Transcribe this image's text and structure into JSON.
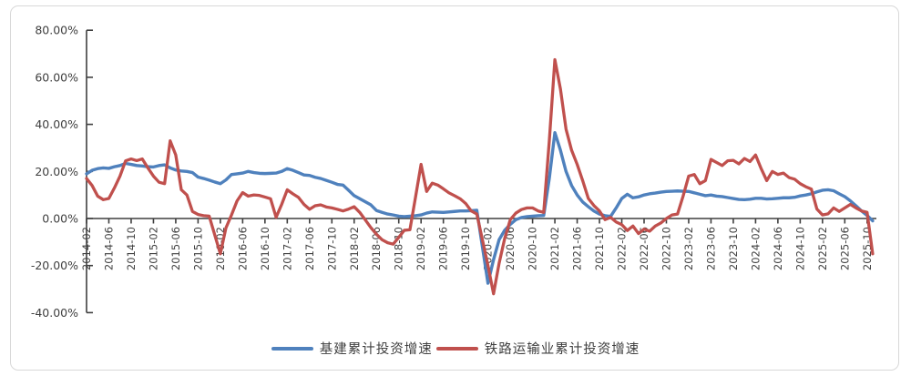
{
  "chart_data": {
    "type": "line",
    "title": "",
    "xlabel": "",
    "ylabel": "",
    "ylim": [
      -40,
      80
    ],
    "grid": false,
    "legend_position": "bottom-center",
    "axis_color": "#3f3f3f",
    "y_ticks": [
      {
        "label": "80.00%",
        "value": 80
      },
      {
        "label": "60.00%",
        "value": 60
      },
      {
        "label": "40.00%",
        "value": 40
      },
      {
        "label": "20.00%",
        "value": 20
      },
      {
        "label": "0.00%",
        "value": 0
      },
      {
        "label": "-20.00%",
        "value": -20
      },
      {
        "label": "-40.00%",
        "value": -40
      }
    ],
    "x_tick_every": 4,
    "x": [
      "2014-02",
      "2014-03",
      "2014-04",
      "2014-05",
      "2014-06",
      "2014-07",
      "2014-08",
      "2014-09",
      "2014-10",
      "2014-11",
      "2014-12",
      "2015-01",
      "2015-02",
      "2015-03",
      "2015-04",
      "2015-05",
      "2015-06",
      "2015-07",
      "2015-08",
      "2015-09",
      "2015-10",
      "2015-11",
      "2015-12",
      "2016-01",
      "2016-02",
      "2016-03",
      "2016-04",
      "2016-05",
      "2016-06",
      "2016-07",
      "2016-08",
      "2016-09",
      "2016-10",
      "2016-11",
      "2016-12",
      "2017-01",
      "2017-02",
      "2017-03",
      "2017-04",
      "2017-05",
      "2017-06",
      "2017-07",
      "2017-08",
      "2017-09",
      "2017-10",
      "2017-11",
      "2017-12",
      "2018-01",
      "2018-02",
      "2018-03",
      "2018-04",
      "2018-05",
      "2018-06",
      "2018-07",
      "2018-08",
      "2018-09",
      "2018-10",
      "2018-11",
      "2018-12",
      "2019-01",
      "2019-02",
      "2019-03",
      "2019-04",
      "2019-05",
      "2019-06",
      "2019-07",
      "2019-08",
      "2019-09",
      "2019-10",
      "2019-11",
      "2019-12",
      "2020-01",
      "2020-02",
      "2020-03",
      "2020-04",
      "2020-05",
      "2020-06",
      "2020-07",
      "2020-08",
      "2020-09",
      "2020-10",
      "2020-11",
      "2020-12",
      "2021-01",
      "2021-02",
      "2021-03",
      "2021-04",
      "2021-05",
      "2021-06",
      "2021-07",
      "2021-08",
      "2021-09",
      "2021-10",
      "2021-11",
      "2021-12",
      "2022-01",
      "2022-02",
      "2022-03",
      "2022-04",
      "2022-05",
      "2022-06",
      "2022-07",
      "2022-08",
      "2022-09",
      "2022-10",
      "2022-11",
      "2022-12",
      "2023-01",
      "2023-02",
      "2023-03",
      "2023-04",
      "2023-05",
      "2023-06",
      "2023-07",
      "2023-08",
      "2023-09",
      "2023-10",
      "2023-11",
      "2023-12",
      "2024-01",
      "2024-02",
      "2024-03",
      "2024-04",
      "2024-05",
      "2024-06",
      "2024-07",
      "2024-08",
      "2024-09",
      "2024-10",
      "2024-11",
      "2024-12",
      "2025-01",
      "2025-02",
      "2025-03",
      "2025-04",
      "2025-05",
      "2025-06",
      "2025-07",
      "2025-08",
      "2025-09",
      "2025-10",
      "2025-11"
    ],
    "series": [
      {
        "name": "基建累计投资增速",
        "color": "#4F81BD",
        "width": 3.4,
        "values": [
          19.0,
          20.5,
          21.2,
          21.5,
          21.3,
          22.0,
          22.5,
          23.4,
          23.0,
          22.5,
          22.3,
          22.0,
          21.9,
          22.5,
          22.8,
          21.5,
          20.6,
          20.2,
          20.0,
          19.5,
          17.6,
          17.0,
          16.3,
          15.5,
          14.8,
          16.4,
          18.7,
          19.0,
          19.3,
          20.0,
          19.5,
          19.2,
          19.1,
          19.2,
          19.3,
          20.0,
          21.2,
          20.5,
          19.5,
          18.5,
          18.3,
          17.5,
          17.0,
          16.2,
          15.4,
          14.5,
          14.2,
          12.0,
          9.7,
          8.4,
          7.1,
          5.8,
          3.4,
          2.6,
          1.9,
          1.5,
          1.0,
          0.8,
          1.0,
          1.2,
          1.5,
          2.3,
          2.8,
          2.7,
          2.6,
          2.8,
          3.0,
          3.2,
          3.2,
          3.3,
          3.5,
          -12.0,
          -27.5,
          -17.5,
          -9.0,
          -5.0,
          -2.5,
          -0.5,
          0.4,
          0.8,
          1.0,
          1.2,
          1.3,
          17.0,
          36.5,
          29.0,
          20.0,
          14.0,
          10.0,
          7.0,
          5.0,
          3.2,
          1.9,
          1.2,
          0.9,
          4.5,
          8.5,
          10.3,
          8.8,
          9.2,
          10.0,
          10.5,
          10.8,
          11.2,
          11.5,
          11.6,
          11.7,
          11.6,
          11.5,
          10.9,
          10.3,
          9.7,
          10.0,
          9.5,
          9.3,
          8.9,
          8.5,
          8.1,
          8.0,
          8.2,
          8.6,
          8.6,
          8.3,
          8.4,
          8.6,
          8.8,
          8.8,
          9.0,
          9.6,
          10.0,
          10.5,
          11.3,
          12.0,
          12.2,
          11.8,
          10.5,
          9.3,
          7.5,
          5.4,
          3.2,
          1.3,
          -1.0
        ]
      },
      {
        "name": "铁路运输业累计投资增速",
        "color": "#C0504D",
        "width": 3.3,
        "values": [
          17.0,
          14.0,
          9.5,
          8.0,
          8.5,
          13.0,
          18.0,
          24.5,
          25.3,
          24.6,
          25.3,
          21.5,
          18.0,
          15.4,
          14.8,
          33.0,
          27.0,
          12.2,
          10.0,
          3.0,
          1.7,
          1.2,
          1.0,
          -7.0,
          -15.0,
          -4.0,
          1.5,
          7.5,
          11.0,
          9.5,
          10.0,
          9.8,
          9.1,
          8.4,
          0.5,
          6.0,
          12.2,
          10.5,
          9.0,
          6.0,
          3.9,
          5.4,
          5.8,
          4.9,
          4.5,
          3.9,
          3.2,
          4.0,
          5.0,
          2.6,
          -0.6,
          -3.9,
          -6.7,
          -9.0,
          -10.3,
          -10.9,
          -8.0,
          -5.0,
          -4.8,
          9.0,
          23.0,
          11.5,
          15.0,
          14.2,
          12.6,
          10.9,
          9.7,
          8.4,
          6.4,
          3.2,
          1.9,
          -9.0,
          -20.0,
          -32.0,
          -19.0,
          -8.5,
          -0.5,
          2.3,
          3.8,
          4.5,
          4.5,
          3.2,
          2.6,
          33.0,
          67.5,
          55.0,
          38.0,
          29.0,
          23.0,
          16.0,
          8.5,
          5.5,
          3.2,
          -0.5,
          0.5,
          -1.5,
          -2.6,
          -5.1,
          -3.2,
          -6.4,
          -4.5,
          -5.4,
          -3.2,
          -1.9,
          0.0,
          1.5,
          1.9,
          9.5,
          18.0,
          18.7,
          14.8,
          16.1,
          25.1,
          23.8,
          22.5,
          24.5,
          24.7,
          23.2,
          25.5,
          24.2,
          27.0,
          21.2,
          16.1,
          20.0,
          18.7,
          19.3,
          17.4,
          16.7,
          14.8,
          13.5,
          12.5,
          4.0,
          1.5,
          2.0,
          4.5,
          3.0,
          4.5,
          6.0,
          4.5,
          3.2,
          2.6,
          -15.0
        ]
      }
    ]
  }
}
